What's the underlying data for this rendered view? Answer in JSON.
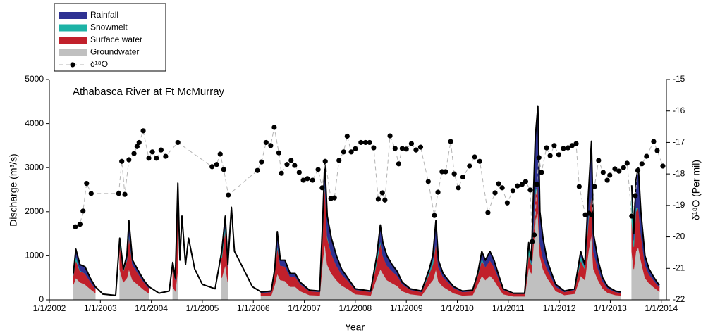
{
  "chart_data": {
    "type": "area",
    "title": "Athabasca River at Ft McMurray",
    "x_label": "Year",
    "y_label": "Discharge (m³/s)",
    "y2_label": "δ¹⁸O (Per mil)",
    "legend": "top-left",
    "xlim": [
      2002,
      2014.1
    ],
    "xticks": [
      {
        "value": 2002,
        "label": "1/1/2002"
      },
      {
        "value": 2003,
        "label": "1/1/2003"
      },
      {
        "value": 2004,
        "label": "1/1/2004"
      },
      {
        "value": 2005,
        "label": "1/1/2005"
      },
      {
        "value": 2006,
        "label": "1/1/2006"
      },
      {
        "value": 2007,
        "label": "1/1/2007"
      },
      {
        "value": 2008,
        "label": "1/1/2008"
      },
      {
        "value": 2009,
        "label": "1/1/2009"
      },
      {
        "value": 2010,
        "label": "1/1/2010"
      },
      {
        "value": 2011,
        "label": "1/1/2011"
      },
      {
        "value": 2012,
        "label": "1/1/2012"
      },
      {
        "value": 2013,
        "label": "1/1/2013"
      },
      {
        "value": 2014,
        "label": "1/1/2014"
      }
    ],
    "ylim": [
      0,
      5000
    ],
    "yticks": [
      0,
      1000,
      2000,
      3000,
      4000,
      5000
    ],
    "y2lim": [
      -22,
      -15
    ],
    "y2ticks": [
      -22,
      -21,
      -20,
      -19,
      -18,
      -17,
      -16,
      -15
    ],
    "x": [
      2002.47,
      2002.52,
      2002.6,
      2002.7,
      2002.8,
      2002.9,
      2003.05,
      2003.3,
      2003.38,
      2003.45,
      2003.52,
      2003.56,
      2003.63,
      2003.75,
      2003.85,
      2003.95,
      2004.15,
      2004.35,
      2004.42,
      2004.47,
      2004.52,
      2004.56,
      2004.6,
      2004.67,
      2004.73,
      2004.85,
      2005.0,
      2005.25,
      2005.38,
      2005.45,
      2005.5,
      2005.57,
      2005.63,
      2005.72,
      2005.85,
      2005.98,
      2006.15,
      2006.35,
      2006.42,
      2006.47,
      2006.53,
      2006.62,
      2006.72,
      2006.82,
      2006.92,
      2007.1,
      2007.3,
      2007.36,
      2007.4,
      2007.45,
      2007.53,
      2007.63,
      2007.73,
      2007.85,
      2008.0,
      2008.3,
      2008.42,
      2008.49,
      2008.54,
      2008.62,
      2008.72,
      2008.82,
      2008.92,
      2009.08,
      2009.3,
      2009.45,
      2009.52,
      2009.58,
      2009.63,
      2009.72,
      2009.82,
      2009.93,
      2010.1,
      2010.3,
      2010.4,
      2010.48,
      2010.55,
      2010.64,
      2010.72,
      2010.8,
      2010.9,
      2011.1,
      2011.32,
      2011.4,
      2011.45,
      2011.53,
      2011.58,
      2011.62,
      2011.68,
      2011.76,
      2011.85,
      2011.93,
      2012.1,
      2012.3,
      2012.42,
      2012.5,
      2012.57,
      2012.63,
      2012.67,
      2012.76,
      2012.85,
      2012.95,
      2013.1,
      2013.2,
      2013.3,
      2013.42,
      2013.46,
      2013.5,
      2013.55,
      2013.6,
      2013.68,
      2013.76,
      2013.86,
      2013.96
    ],
    "series": [
      {
        "name": "Groundwater",
        "color": "#c0c0c0",
        "values": [
          350,
          500,
          400,
          350,
          250,
          160,
          null,
          null,
          700,
          400,
          500,
          700,
          450,
          330,
          230,
          150,
          null,
          null,
          300,
          200,
          700,
          null,
          null,
          null,
          null,
          null,
          null,
          null,
          500,
          800,
          400,
          null,
          null,
          null,
          null,
          null,
          90,
          100,
          350,
          600,
          450,
          430,
          300,
          300,
          200,
          110,
          100,
          900,
          1300,
          800,
          600,
          450,
          330,
          250,
          130,
          100,
          500,
          700,
          600,
          450,
          380,
          320,
          200,
          130,
          100,
          350,
          450,
          700,
          420,
          300,
          230,
          150,
          100,
          110,
          350,
          550,
          450,
          550,
          450,
          300,
          130,
          80,
          80,
          750,
          600,
          1800,
          2000,
          1000,
          700,
          500,
          350,
          200,
          110,
          140,
          550,
          450,
          1100,
          1500,
          700,
          450,
          260,
          160,
          110,
          100,
          null,
          1100,
          700,
          1100,
          1200,
          900,
          500,
          380,
          280,
          190
        ]
      },
      {
        "name": "Surface water",
        "color": "#c1202b",
        "values": [
          200,
          400,
          250,
          250,
          170,
          100,
          null,
          null,
          550,
          250,
          400,
          750,
          350,
          250,
          180,
          120,
          null,
          null,
          450,
          250,
          1800,
          null,
          null,
          null,
          null,
          null,
          null,
          null,
          450,
          800,
          350,
          null,
          null,
          null,
          null,
          null,
          70,
          80,
          280,
          600,
          330,
          330,
          230,
          230,
          160,
          90,
          80,
          650,
          1400,
          600,
          450,
          330,
          250,
          190,
          100,
          80,
          350,
          600,
          400,
          330,
          280,
          230,
          160,
          100,
          80,
          250,
          350,
          600,
          320,
          220,
          170,
          120,
          80,
          90,
          200,
          350,
          300,
          350,
          300,
          220,
          100,
          60,
          60,
          300,
          200,
          600,
          600,
          300,
          250,
          200,
          150,
          100,
          70,
          90,
          350,
          250,
          700,
          900,
          400,
          250,
          160,
          100,
          70,
          60,
          null,
          700,
          500,
          900,
          900,
          600,
          300,
          200,
          150,
          100
        ]
      },
      {
        "name": "Snowmelt",
        "color": "#1db3a6",
        "values": [
          20,
          100,
          20,
          0,
          0,
          0,
          null,
          null,
          130,
          30,
          20,
          50,
          0,
          0,
          0,
          0,
          null,
          null,
          30,
          0,
          50,
          null,
          null,
          null,
          null,
          null,
          null,
          null,
          100,
          100,
          0,
          null,
          null,
          null,
          null,
          null,
          0,
          0,
          30,
          50,
          0,
          0,
          0,
          0,
          0,
          0,
          0,
          200,
          50,
          50,
          0,
          0,
          0,
          0,
          0,
          0,
          100,
          50,
          0,
          0,
          0,
          0,
          0,
          0,
          0,
          50,
          100,
          0,
          0,
          0,
          0,
          0,
          0,
          0,
          20,
          50,
          0,
          0,
          0,
          0,
          0,
          0,
          0,
          200,
          50,
          100,
          0,
          0,
          0,
          0,
          0,
          0,
          0,
          0,
          100,
          50,
          100,
          0,
          0,
          0,
          0,
          0,
          0,
          0,
          null,
          600,
          150,
          100,
          0,
          0,
          0,
          0,
          0,
          0
        ]
      },
      {
        "name": "Rainfall",
        "color": "#2e3192",
        "values": [
          30,
          150,
          130,
          150,
          80,
          40,
          null,
          null,
          20,
          20,
          80,
          300,
          100,
          70,
          40,
          30,
          null,
          null,
          70,
          50,
          100,
          null,
          null,
          null,
          null,
          null,
          null,
          null,
          50,
          200,
          50,
          null,
          null,
          null,
          null,
          null,
          20,
          20,
          40,
          300,
          120,
          140,
          70,
          70,
          40,
          20,
          20,
          50,
          400,
          450,
          350,
          220,
          120,
          60,
          20,
          20,
          50,
          350,
          300,
          220,
          140,
          100,
          40,
          20,
          20,
          50,
          100,
          500,
          160,
          80,
          50,
          30,
          20,
          20,
          30,
          150,
          150,
          200,
          150,
          80,
          20,
          10,
          10,
          50,
          50,
          1200,
          1800,
          700,
          450,
          200,
          100,
          50,
          20,
          20,
          100,
          50,
          500,
          1200,
          400,
          200,
          80,
          40,
          20,
          20,
          null,
          200,
          150,
          600,
          900,
          500,
          200,
          120,
          70,
          40
        ]
      }
    ],
    "total": {
      "color": "#000000",
      "values": [
        600,
        1150,
        800,
        750,
        500,
        300,
        130,
        100,
        1400,
        700,
        1000,
        1800,
        900,
        650,
        450,
        300,
        150,
        200,
        850,
        500,
        2650,
        900,
        1900,
        800,
        1400,
        700,
        350,
        250,
        1100,
        1900,
        800,
        2100,
        1100,
        900,
        600,
        300,
        180,
        200,
        700,
        1550,
        900,
        900,
        600,
        600,
        400,
        220,
        200,
        1800,
        3150,
        1900,
        1400,
        1000,
        700,
        500,
        250,
        200,
        1000,
        1700,
        1300,
        1000,
        800,
        650,
        400,
        250,
        200,
        700,
        1000,
        1800,
        900,
        600,
        450,
        300,
        200,
        220,
        600,
        1100,
        900,
        1100,
        900,
        600,
        250,
        150,
        150,
        1300,
        900,
        3700,
        4400,
        2000,
        1400,
        900,
        600,
        350,
        200,
        250,
        1100,
        800,
        2400,
        3600,
        1500,
        900,
        500,
        300,
        200,
        180,
        null,
        2600,
        1500,
        2700,
        3000,
        2000,
        1000,
        700,
        500,
        330
      ]
    },
    "isotope": {
      "name": "δ¹⁸O",
      "axis": "y2",
      "color": "#000000",
      "line_color": "#b4b4b4",
      "x": [
        2002.51,
        2002.6,
        2002.66,
        2002.73,
        2002.82,
        2003.36,
        2003.42,
        2003.48,
        2003.56,
        2003.66,
        2003.72,
        2003.76,
        2003.84,
        2003.95,
        2004.02,
        2004.1,
        2004.19,
        2004.28,
        2004.52,
        2005.19,
        2005.28,
        2005.35,
        2005.42,
        2005.51,
        2006.08,
        2006.16,
        2006.25,
        2006.34,
        2006.41,
        2006.5,
        2006.55,
        2006.66,
        2006.74,
        2006.81,
        2006.9,
        2006.98,
        2007.06,
        2007.16,
        2007.27,
        2007.35,
        2007.41,
        2007.52,
        2007.59,
        2007.68,
        2007.77,
        2007.84,
        2007.92,
        2008,
        2008.11,
        2008.2,
        2008.28,
        2008.36,
        2008.45,
        2008.53,
        2008.58,
        2008.68,
        2008.78,
        2008.85,
        2008.92,
        2009,
        2009.1,
        2009.19,
        2009.28,
        2009.43,
        2009.55,
        2009.62,
        2009.7,
        2009.77,
        2009.87,
        2009.94,
        2010.02,
        2010.11,
        2010.24,
        2010.34,
        2010.44,
        2010.6,
        2010.74,
        2010.81,
        2010.88,
        2010.98,
        2011.09,
        2011.18,
        2011.27,
        2011.34,
        2011.43,
        2011.47,
        2011.51,
        2011.56,
        2011.6,
        2011.65,
        2011.75,
        2011.82,
        2011.9,
        2011.99,
        2012.08,
        2012.17,
        2012.25,
        2012.33,
        2012.39,
        2012.51,
        2012.58,
        2012.64,
        2012.69,
        2012.77,
        2012.86,
        2012.94,
        2012.99,
        2013.09,
        2013.17,
        2013.26,
        2013.33,
        2013.42,
        2013.49,
        2013.54,
        2013.62,
        2013.71,
        2013.85,
        2013.92,
        2014.03
      ],
      "values": [
        -19.68,
        -19.6,
        -19.18,
        -18.3,
        -18.62,
        -18.62,
        -17.6,
        -18.65,
        -17.55,
        -17.35,
        -17.13,
        -17.0,
        -16.63,
        -17.5,
        -17.3,
        -17.5,
        -17.24,
        -17.44,
        -17.0,
        -17.77,
        -17.7,
        -17.37,
        -17.86,
        -18.67,
        -17.89,
        -17.62,
        -17.0,
        -17.1,
        -16.52,
        -17.33,
        -17.98,
        -17.7,
        -17.57,
        -17.73,
        -17.95,
        -18.2,
        -18.15,
        -18.2,
        -17.86,
        -18.44,
        -17.6,
        -18.78,
        -18.76,
        -17.57,
        -17.3,
        -16.8,
        -17.3,
        -17.2,
        -17.0,
        -17.0,
        -17.0,
        -17.17,
        -18.8,
        -18.6,
        -18.83,
        -16.79,
        -17.19,
        -17.68,
        -17.19,
        -17.21,
        -17.04,
        -17.24,
        -17.15,
        -18.24,
        -19.32,
        -18.58,
        -17.93,
        -17.93,
        -16.97,
        -18.0,
        -18.44,
        -18.1,
        -17.75,
        -17.46,
        -17.6,
        -19.23,
        -18.6,
        -18.31,
        -18.44,
        -18.92,
        -18.53,
        -18.38,
        -18.33,
        -18.24,
        -18.51,
        -20.15,
        -19.94,
        -18.33,
        -17.48,
        -17.95,
        -17.17,
        -17.42,
        -17.1,
        -17.39,
        -17.19,
        -17.17,
        -17.1,
        -17.04,
        -18.4,
        -19.3,
        -19.25,
        -19.3,
        -18.4,
        -17.57,
        -17.95,
        -18.2,
        -18.04,
        -17.84,
        -17.91,
        -17.8,
        -17.66,
        -19.34,
        -18.69,
        -17.89,
        -17.68,
        -17.44,
        -16.97,
        -17.26,
        -17.75
      ]
    }
  }
}
